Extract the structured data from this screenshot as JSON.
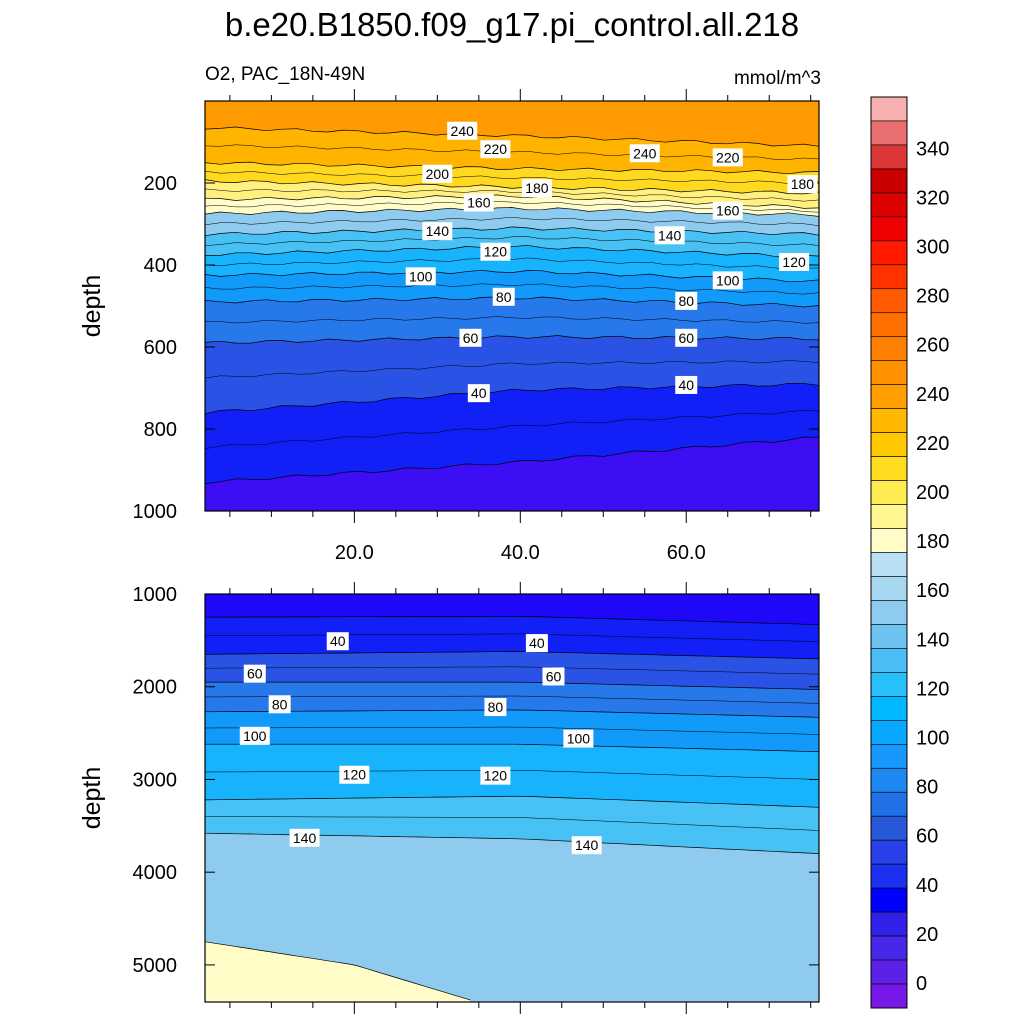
{
  "title": "b.e20.B1850.f09_g17.pi_control.all.218",
  "subtitle_left": "O2, PAC_18N-49N",
  "subtitle_right": "mmol/m^3",
  "chart_data": [
    {
      "type": "heatmap",
      "panel": "upper",
      "ylabel": "depth",
      "y_range": [
        0,
        1000
      ],
      "y_reversed": true,
      "y_ticks": [
        "200",
        "400",
        "600",
        "800",
        "1000"
      ],
      "x_range": [
        2,
        76
      ],
      "x_ticks": [
        "20.0",
        "40.0",
        "60.0"
      ],
      "contour_levels_labeled": [
        "240",
        "220",
        "200",
        "180",
        "160",
        "140",
        "120",
        "100",
        "80",
        "60",
        "40"
      ],
      "contour_depths": [
        {
          "value": 240,
          "depth_at_x": [
            [
              2,
              65
            ],
            [
              40,
              85
            ],
            [
              76,
              110
            ]
          ]
        },
        {
          "value": 220,
          "depth_at_x": [
            [
              2,
              150
            ],
            [
              40,
              165
            ],
            [
              76,
              175
            ]
          ]
        },
        {
          "value": 200,
          "depth_at_x": [
            [
              2,
              195
            ],
            [
              40,
              210
            ],
            [
              76,
              225
            ]
          ]
        },
        {
          "value": 180,
          "depth_at_x": [
            [
              2,
              240
            ],
            [
              40,
              232
            ],
            [
              76,
              260
            ]
          ]
        },
        {
          "value": 160,
          "depth_at_x": [
            [
              2,
              275
            ],
            [
              40,
              262
            ],
            [
              76,
              278
            ]
          ]
        },
        {
          "value": 140,
          "depth_at_x": [
            [
              2,
              325
            ],
            [
              40,
              310
            ],
            [
              76,
              325
            ]
          ]
        },
        {
          "value": 120,
          "depth_at_x": [
            [
              2,
              375
            ],
            [
              40,
              355
            ],
            [
              76,
              380
            ]
          ]
        },
        {
          "value": 100,
          "depth_at_x": [
            [
              2,
              425
            ],
            [
              40,
              415
            ],
            [
              76,
              440
            ]
          ]
        },
        {
          "value": 80,
          "depth_at_x": [
            [
              2,
              490
            ],
            [
              40,
              480
            ],
            [
              76,
              500
            ]
          ]
        },
        {
          "value": 60,
          "depth_at_x": [
            [
              2,
              590
            ],
            [
              40,
              575
            ],
            [
              76,
              580
            ]
          ]
        },
        {
          "value": 40,
          "depth_at_x": [
            [
              2,
              760
            ],
            [
              40,
              705
            ],
            [
              76,
              690
            ]
          ]
        },
        {
          "value": 20,
          "depth_at_x": [
            [
              2,
              930
            ],
            [
              40,
              880
            ],
            [
              76,
              820
            ]
          ]
        }
      ]
    },
    {
      "type": "heatmap",
      "panel": "lower",
      "ylabel": "depth",
      "y_range": [
        1000,
        5400
      ],
      "y_reversed": true,
      "y_ticks": [
        "1000",
        "2000",
        "3000",
        "4000",
        "5000"
      ],
      "x_range": [
        2,
        76
      ],
      "contour_levels_labeled": [
        "40",
        "60",
        "80",
        "100",
        "120",
        "140"
      ],
      "contour_depths": [
        {
          "value": 20,
          "depth_at_x": [
            [
              2,
              1250
            ],
            [
              40,
              1240
            ],
            [
              76,
              1330
            ]
          ]
        },
        {
          "value": 40,
          "depth_at_x": [
            [
              2,
              1650
            ],
            [
              40,
              1620
            ],
            [
              76,
              1700
            ]
          ]
        },
        {
          "value": 60,
          "depth_at_x": [
            [
              2,
              1950
            ],
            [
              40,
              1950
            ],
            [
              76,
              2030
            ]
          ]
        },
        {
          "value": 80,
          "depth_at_x": [
            [
              2,
              2270
            ],
            [
              40,
              2250
            ],
            [
              76,
              2330
            ]
          ]
        },
        {
          "value": 100,
          "depth_at_x": [
            [
              2,
              2620
            ],
            [
              40,
              2620
            ],
            [
              76,
              2700
            ]
          ]
        },
        {
          "value": 120,
          "depth_at_x": [
            [
              2,
              3220
            ],
            [
              40,
              3180
            ],
            [
              76,
              3300
            ]
          ]
        },
        {
          "value": 140,
          "depth_at_x": [
            [
              2,
              3580
            ],
            [
              40,
              3640
            ],
            [
              76,
              3800
            ]
          ]
        },
        {
          "value": 160,
          "depth_at_x": [
            [
              2,
              4750
            ],
            [
              20,
              5000
            ],
            [
              34,
              5380
            ]
          ]
        }
      ]
    }
  ],
  "colorbar": {
    "labels": [
      "340",
      "320",
      "300",
      "280",
      "260",
      "240",
      "220",
      "200",
      "180",
      "160",
      "140",
      "120",
      "100",
      "80",
      "60",
      "40",
      "20",
      "0"
    ],
    "colors": [
      "#f7b0b0",
      "#e87070",
      "#dc3838",
      "#c80000",
      "#dc0000",
      "#f00000",
      "#ff1a00",
      "#ff3300",
      "#ff5a00",
      "#ff7000",
      "#ff8000",
      "#ff9000",
      "#ffa000",
      "#ffb800",
      "#ffc800",
      "#ffdc20",
      "#ffec50",
      "#fff690",
      "#fffcc8",
      "#b8e0f2",
      "#a6d6f0",
      "#8ecbee",
      "#6ec2f2",
      "#4cbef6",
      "#28c0fa",
      "#00b8ff",
      "#08a8ff",
      "#1898ff",
      "#1c88f0",
      "#2070e8",
      "#2858d8",
      "#2840e8",
      "#1c30f0",
      "#0000ff",
      "#3020e8",
      "#4828e8",
      "#5c20e8",
      "#7818e8"
    ]
  }
}
